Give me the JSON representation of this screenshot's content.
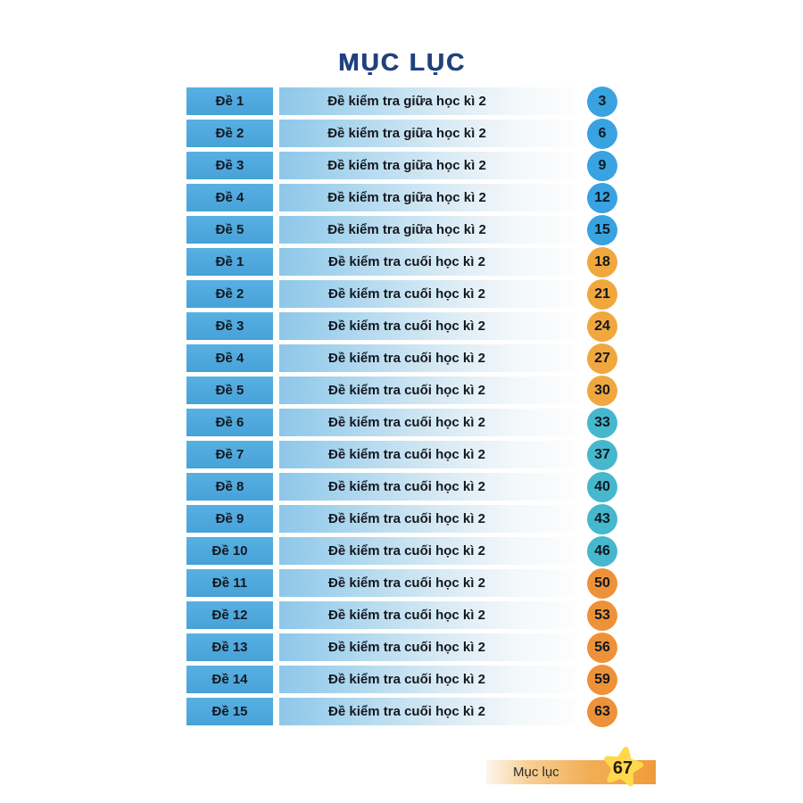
{
  "page": {
    "title": "MỤC LỤC",
    "background": "#ffffff",
    "title_color": "#21417e"
  },
  "table": {
    "rows": [
      {
        "label": "Đề 1",
        "description": "Đề kiểm tra giữa học kì 2",
        "page": "3",
        "badge": "blue"
      },
      {
        "label": "Đề 2",
        "description": "Đề kiểm tra giữa học kì 2",
        "page": "6",
        "badge": "blue"
      },
      {
        "label": "Đề 3",
        "description": "Đề kiểm tra giữa học kì 2",
        "page": "9",
        "badge": "blue"
      },
      {
        "label": "Đề 4",
        "description": "Đề kiểm tra giữa học kì 2",
        "page": "12",
        "badge": "blue"
      },
      {
        "label": "Đề 5",
        "description": "Đề kiểm tra giữa học kì 2",
        "page": "15",
        "badge": "blue"
      },
      {
        "label": "Đề 1",
        "description": "Đề kiểm tra cuối học kì 2",
        "page": "18",
        "badge": "orange"
      },
      {
        "label": "Đề 2",
        "description": "Đề kiểm tra cuối học kì 2",
        "page": "21",
        "badge": "orange"
      },
      {
        "label": "Đề 3",
        "description": "Đề kiểm tra cuối học kì 2",
        "page": "24",
        "badge": "orange"
      },
      {
        "label": "Đề 4",
        "description": "Đề kiểm tra cuối học kì 2",
        "page": "27",
        "badge": "orange"
      },
      {
        "label": "Đề 5",
        "description": "Đề kiểm tra cuối học kì 2",
        "page": "30",
        "badge": "orange"
      },
      {
        "label": "Đề 6",
        "description": "Đề kiểm tra cuối học kì 2",
        "page": "33",
        "badge": "teal"
      },
      {
        "label": "Đề 7",
        "description": "Đề kiểm tra cuối học kì 2",
        "page": "37",
        "badge": "teal"
      },
      {
        "label": "Đề 8",
        "description": "Đề kiểm tra cuối học kì 2",
        "page": "40",
        "badge": "teal"
      },
      {
        "label": "Đề 9",
        "description": "Đề kiểm tra cuối học kì 2",
        "page": "43",
        "badge": "teal"
      },
      {
        "label": "Đề 10",
        "description": "Đề kiểm tra cuối học kì 2",
        "page": "46",
        "badge": "teal"
      },
      {
        "label": "Đề 11",
        "description": "Đề kiểm tra cuối học kì 2",
        "page": "50",
        "badge": "orange_deep"
      },
      {
        "label": "Đề 12",
        "description": "Đề kiểm tra cuối học kì 2",
        "page": "53",
        "badge": "orange_deep"
      },
      {
        "label": "Đề 13",
        "description": "Đề kiểm tra cuối học kì 2",
        "page": "56",
        "badge": "orange_deep"
      },
      {
        "label": "Đề 14",
        "description": "Đề kiểm tra cuối học kì 2",
        "page": "59",
        "badge": "orange_deep"
      },
      {
        "label": "Đề 15",
        "description": "Đề kiểm tra cuối học kì 2",
        "page": "63",
        "badge": "orange_deep"
      }
    ]
  },
  "palette": {
    "badge_blue": "#38a3e0",
    "badge_teal": "#45b8cd",
    "badge_orange": "#f0a73e",
    "badge_orange_deep": "#ee9239",
    "row_label_bg": "#4fa9dc",
    "row_desc_gradient_start": "#8dc7e9",
    "footer_bar_orange": "#ef9c3a",
    "star_yellow": "#ffd84b"
  },
  "footer": {
    "label": "Mục lục",
    "page_number": "67"
  }
}
